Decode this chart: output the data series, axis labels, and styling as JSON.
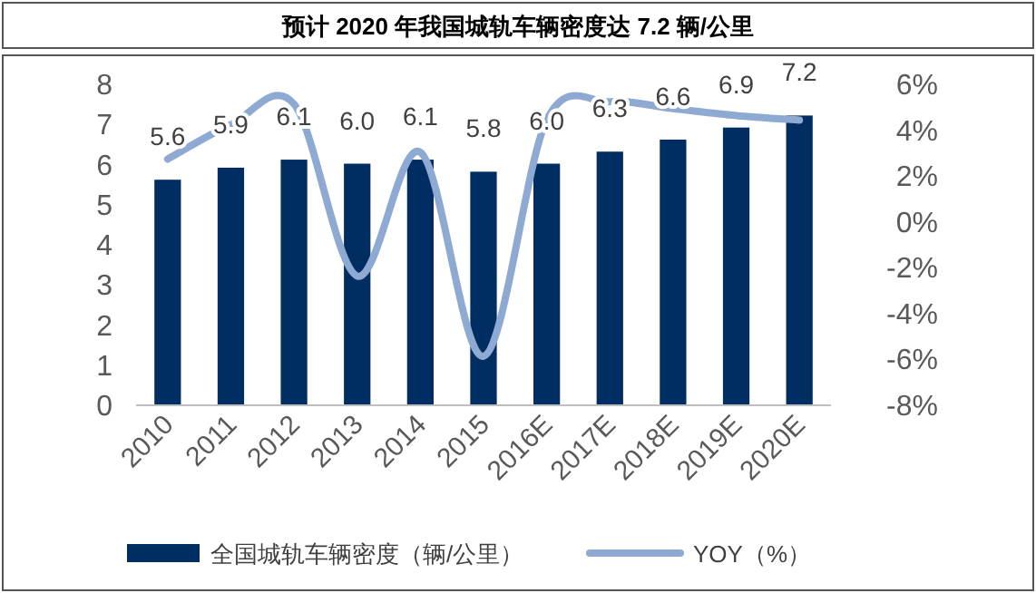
{
  "chart_data": {
    "type": "bar",
    "title": "预计 2020 年我国城轨车辆密度达 7.2 辆/公里",
    "categories": [
      "2010",
      "2011",
      "2012",
      "2013",
      "2014",
      "2015",
      "2016E",
      "2017E",
      "2018E",
      "2019E",
      "2020E"
    ],
    "series": [
      {
        "name": "全国城轨车辆密度（辆/公里）",
        "color": "#002d62",
        "values": [
          5.6,
          5.9,
          6.1,
          6.0,
          6.1,
          5.8,
          6.0,
          6.3,
          6.6,
          6.9,
          7.2
        ],
        "value_labels": [
          "5.6",
          "5.9",
          "6.1",
          "6.0",
          "6.1",
          "5.8",
          "6.0",
          "6.3",
          "6.6",
          "6.9",
          "7.2"
        ]
      },
      {
        "name": "YOY（%）",
        "type": "line",
        "axis": "y2",
        "color": "#8eaad3",
        "values": [
          2.7,
          4.2,
          5.1,
          -2.4,
          3.0,
          -5.9,
          4.4,
          5.2,
          4.9,
          4.6,
          4.4
        ]
      }
    ],
    "ylim": [
      0,
      8
    ],
    "yticks": [
      0,
      1,
      2,
      3,
      4,
      5,
      6,
      7,
      8
    ],
    "y2lim": [
      -8,
      6
    ],
    "y2ticks": [
      {
        "value": -8,
        "label": "-8%"
      },
      {
        "value": -6,
        "label": "-6%"
      },
      {
        "value": -4,
        "label": "-4%"
      },
      {
        "value": -2,
        "label": "-2%"
      },
      {
        "value": 0,
        "label": "0%"
      },
      {
        "value": 2,
        "label": "2%"
      },
      {
        "value": 4,
        "label": "4%"
      },
      {
        "value": 6,
        "label": "6%"
      }
    ],
    "legend": "bottom"
  }
}
